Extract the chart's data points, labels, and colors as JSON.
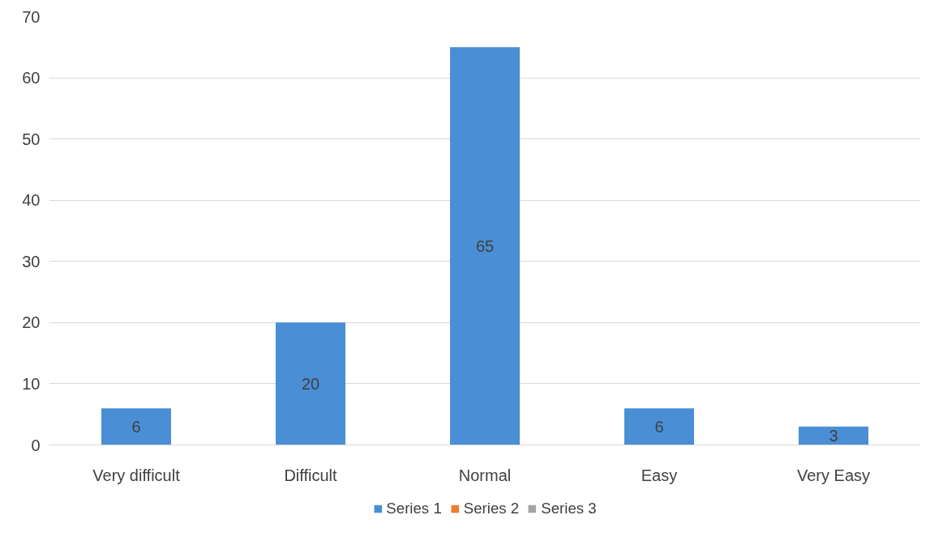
{
  "chart_data": {
    "type": "bar",
    "categories": [
      "Very difficult",
      "Difficult",
      "Normal",
      "Easy",
      "Very Easy"
    ],
    "series": [
      {
        "name": "Series 1",
        "color": "#4a8fd6",
        "values": [
          6,
          20,
          65,
          6,
          3
        ]
      },
      {
        "name": "Series 2",
        "color": "#ed7d31",
        "values": [
          null,
          null,
          null,
          null,
          null
        ]
      },
      {
        "name": "Series 3",
        "color": "#a5a5a5",
        "values": [
          null,
          null,
          null,
          null,
          null
        ]
      }
    ],
    "ylim": [
      0,
      70
    ],
    "yticks": [
      0,
      10,
      20,
      30,
      40,
      50,
      60,
      70
    ],
    "grid": "y",
    "legend": "bottom",
    "data_labels": true
  }
}
